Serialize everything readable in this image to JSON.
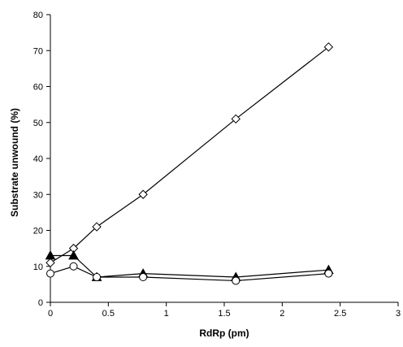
{
  "chart_data": {
    "type": "line",
    "xlabel": "RdRp (pm)",
    "ylabel": "Substrate unwound (%)",
    "xlim": [
      0,
      3
    ],
    "ylim": [
      0,
      80
    ],
    "xticks": [
      "0",
      "0.5",
      "1",
      "1.5",
      "2",
      "2.5",
      "3"
    ],
    "yticks": [
      "0",
      "10",
      "20",
      "30",
      "40",
      "50",
      "60",
      "70",
      "80"
    ],
    "grid": false,
    "legend": "none",
    "series": [
      {
        "marker": "diamond-open",
        "color": "#000000",
        "x": [
          0,
          0.2,
          0.4,
          0.8,
          1.6,
          2.4
        ],
        "y": [
          11,
          15,
          21,
          30,
          51,
          71
        ]
      },
      {
        "marker": "triangle-filled",
        "color": "#000000",
        "x": [
          0,
          0.2,
          0.4,
          0.8,
          1.6,
          2.4
        ],
        "y": [
          13,
          13,
          7,
          8,
          7,
          9
        ]
      },
      {
        "marker": "circle-open",
        "color": "#000000",
        "x": [
          0,
          0.2,
          0.4,
          0.8,
          1.6,
          2.4
        ],
        "y": [
          8,
          10,
          7,
          7,
          6,
          8
        ]
      }
    ]
  }
}
